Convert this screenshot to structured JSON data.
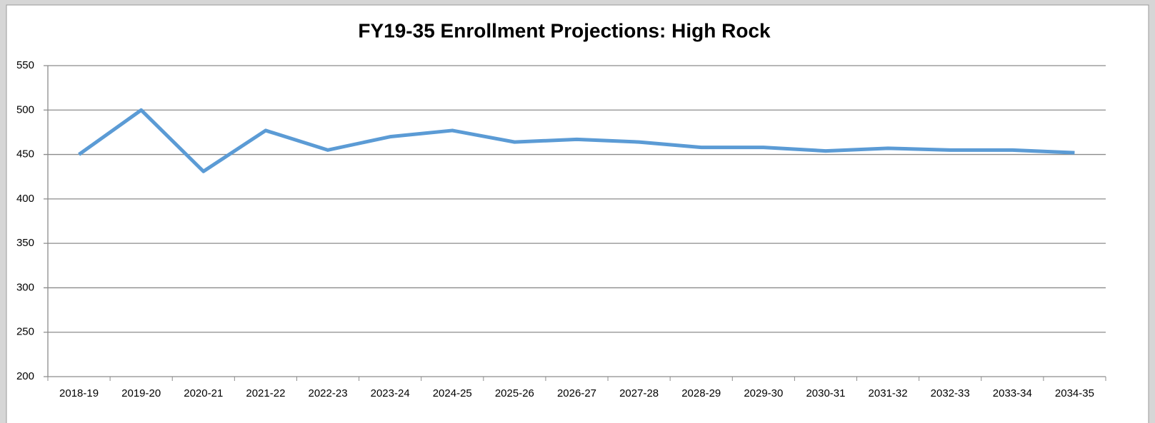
{
  "chart_data": {
    "type": "line",
    "title": "FY19-35 Enrollment Projections: High Rock",
    "categories": [
      "2018-19",
      "2019-20",
      "2020-21",
      "2021-22",
      "2022-23",
      "2023-24",
      "2024-25",
      "2025-26",
      "2026-27",
      "2027-28",
      "2028-29",
      "2029-30",
      "2030-31",
      "2031-32",
      "2032-33",
      "2033-34",
      "2034-35"
    ],
    "series": [
      {
        "name": "High Rock",
        "color": "#5b9bd5",
        "values": [
          450,
          500,
          431,
          477,
          455,
          470,
          477,
          464,
          467,
          464,
          458,
          458,
          454,
          457,
          455,
          455,
          452
        ]
      }
    ],
    "ylim": [
      200,
      550
    ],
    "yticks": [
      200,
      250,
      300,
      350,
      400,
      450,
      500,
      550
    ],
    "grid": true
  }
}
